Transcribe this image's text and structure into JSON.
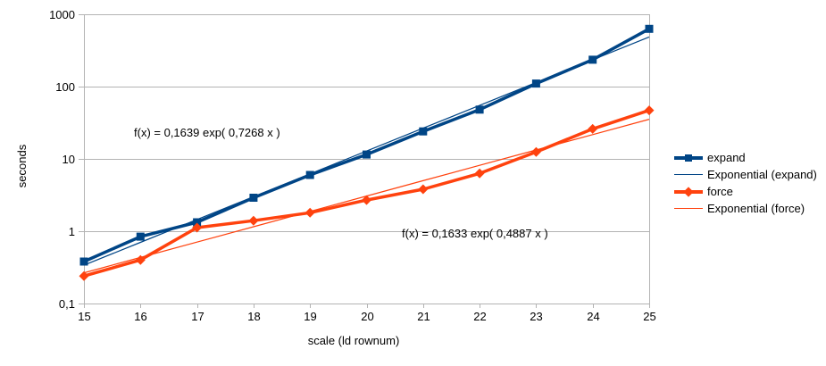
{
  "chart_data": {
    "type": "line",
    "xlabel": "scale (ld rownum)",
    "ylabel": "seconds",
    "xlim": [
      15,
      25
    ],
    "ylim": [
      0.1,
      1000
    ],
    "y_scale": "log10",
    "grid": "horizontal-major-only",
    "grid_color": "#b3b3b3",
    "background": "#ffffff",
    "legend_position": "right",
    "x": [
      15,
      16,
      17,
      18,
      19,
      20,
      21,
      22,
      23,
      24,
      25
    ],
    "x_tick_labels": [
      "15",
      "16",
      "17",
      "18",
      "19",
      "20",
      "21",
      "22",
      "23",
      "24",
      "25"
    ],
    "y_ticks": [
      {
        "label": "1000",
        "value": 1000
      },
      {
        "label": "100",
        "value": 100
      },
      {
        "label": "10",
        "value": 10
      },
      {
        "label": "1",
        "value": 1
      },
      {
        "label": "0,1",
        "value": 0.1
      }
    ],
    "series": [
      {
        "name": "expand",
        "type": "data",
        "color": "#004586",
        "marker": "square",
        "values": [
          0.38,
          0.84,
          1.33,
          2.9,
          6.0,
          11.5,
          24,
          48,
          110,
          235,
          630
        ]
      },
      {
        "name": "Exponential (expand)",
        "type": "trendline",
        "color": "#004586",
        "formula_text": "f(x) = 0,1639 exp( 0,7268 x )",
        "a": 0.1639,
        "b": 0.7268,
        "x_index_offset": 14
      },
      {
        "name": "force",
        "type": "data",
        "color": "#ff420e",
        "marker": "diamond",
        "values": [
          0.24,
          0.4,
          1.12,
          1.4,
          1.8,
          2.7,
          3.8,
          6.3,
          12.5,
          26,
          47
        ]
      },
      {
        "name": "Exponential (force)",
        "type": "trendline",
        "color": "#ff420e",
        "formula_text": "f(x) = 0,1633 exp( 0,4887 x )",
        "a": 0.1633,
        "b": 0.4887,
        "x_index_offset": 14
      }
    ],
    "annotations": [
      {
        "text": "f(x) = 0,1639 exp( 0,7268 x )"
      },
      {
        "text": "f(x) = 0,1633 exp( 0,4887 x )"
      }
    ]
  }
}
